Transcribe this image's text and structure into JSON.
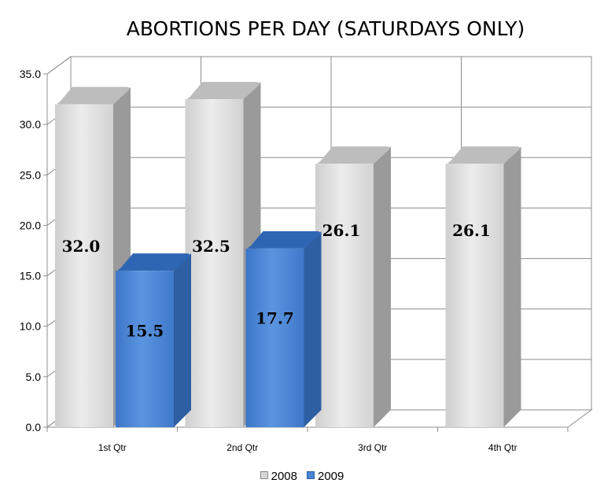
{
  "chart_data": {
    "type": "bar",
    "title": "ABORTIONS PER DAY (SATURDAYS ONLY)",
    "categories": [
      "1st Qtr",
      "2nd Qtr",
      "3rd Qtr",
      "4th Qtr"
    ],
    "series": [
      {
        "name": "2008",
        "color": "#d6d6d6",
        "values": [
          32.0,
          32.5,
          26.1,
          26.1
        ],
        "labels": [
          "32.0",
          "32.5",
          "26.1",
          "26.1"
        ]
      },
      {
        "name": "2009",
        "color": "#4a86d6",
        "values": [
          15.5,
          17.7,
          null,
          null
        ],
        "labels": [
          "15.5",
          "17.7",
          "",
          ""
        ]
      }
    ],
    "y_ticks": [
      "0.0",
      "5.0",
      "10.0",
      "15.0",
      "20.0",
      "25.0",
      "30.0",
      "35.0"
    ],
    "ylim": [
      0,
      35
    ],
    "grid": true,
    "legend_position": "bottom",
    "style": "3d-clustered-column"
  }
}
